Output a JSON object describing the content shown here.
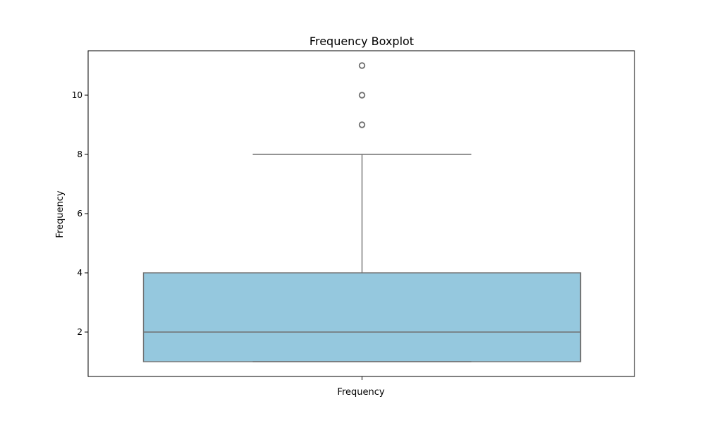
{
  "chart_data": {
    "type": "boxplot",
    "title": "Frequency Boxplot",
    "xlabel": "Frequency",
    "ylabel": "Frequency",
    "categories": [
      "Frequency"
    ],
    "ylim": [
      0.5,
      11.5
    ],
    "yticks": [
      2,
      4,
      6,
      8,
      10
    ],
    "grid": false,
    "series": [
      {
        "whisker_low": 1,
        "q1": 1,
        "median": 2,
        "q3": 4,
        "whisker_high": 8,
        "outliers": [
          9,
          10,
          11
        ]
      }
    ],
    "colors": {
      "box_fill": "#95c8de",
      "line": "#707070"
    }
  }
}
